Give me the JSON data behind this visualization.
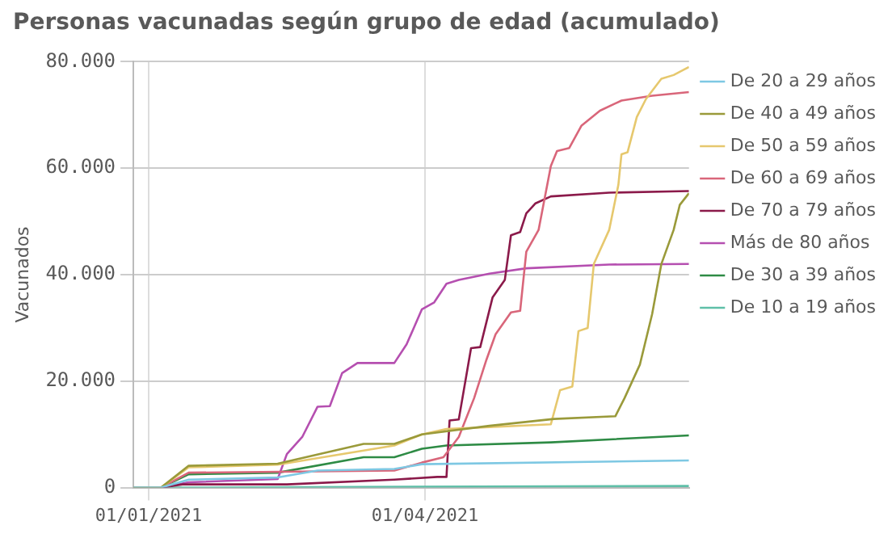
{
  "chart_data": {
    "type": "line",
    "title": "Personas vacunadas según grupo de edad (acumulado)",
    "ylabel": "Vacunados",
    "xlim": [
      "2020-12-27",
      "2021-06-26"
    ],
    "xticks": [
      {
        "value": "2021-01-01",
        "label": "01/01/2021"
      },
      {
        "value": "2021-04-01",
        "label": "01/04/2021"
      }
    ],
    "ylim": [
      0,
      80000
    ],
    "yticks": [
      0,
      {
        "value": 20000,
        "label": "20.000"
      },
      {
        "value": 40000,
        "label": "40.000"
      },
      {
        "value": 60000,
        "label": "60.000"
      },
      {
        "value": 80000,
        "label": "80.000"
      }
    ],
    "grid": true,
    "legend": "right",
    "series": [
      {
        "name": "De 20 a 29 años",
        "color": "#7ec8e3",
        "x": [
          "2020-12-27",
          "2021-01-05",
          "2021-01-14",
          "2021-02-12",
          "2021-02-25",
          "2021-03-22",
          "2021-03-31",
          "2021-06-26"
        ],
        "values": [
          0,
          0,
          1500,
          1900,
          3200,
          3500,
          4400,
          5100
        ]
      },
      {
        "name": "De 40 a 49 años",
        "color": "#9a9a3a",
        "x": [
          "2020-12-27",
          "2021-01-05",
          "2021-01-14",
          "2021-02-12",
          "2021-03-12",
          "2021-03-22",
          "2021-03-31",
          "2021-04-22",
          "2021-05-13",
          "2021-06-02",
          "2021-06-05",
          "2021-06-10",
          "2021-06-14",
          "2021-06-17",
          "2021-06-21",
          "2021-06-23",
          "2021-06-26"
        ],
        "values": [
          0,
          0,
          4100,
          4500,
          8200,
          8200,
          10000,
          11600,
          12900,
          13400,
          16800,
          23100,
          32600,
          42000,
          48400,
          53100,
          55300
        ]
      },
      {
        "name": "De 50 a 59 años",
        "color": "#e6c86e",
        "x": [
          "2020-12-27",
          "2021-01-05",
          "2021-01-14",
          "2021-02-12",
          "2021-03-22",
          "2021-03-31",
          "2021-04-08",
          "2021-05-12",
          "2021-05-15",
          "2021-05-19",
          "2021-05-21",
          "2021-05-24",
          "2021-05-26",
          "2021-05-31",
          "2021-06-03",
          "2021-06-04",
          "2021-06-06",
          "2021-06-09",
          "2021-06-12",
          "2021-06-17",
          "2021-06-21",
          "2021-06-24",
          "2021-06-26"
        ],
        "values": [
          0,
          0,
          3800,
          4300,
          7900,
          10000,
          11000,
          11900,
          18300,
          19000,
          29400,
          30000,
          42000,
          48400,
          56900,
          62600,
          63000,
          69600,
          73000,
          76800,
          77500,
          78400,
          79000
        ]
      },
      {
        "name": "De 60 a 69 años",
        "color": "#d9667a",
        "x": [
          "2020-12-27",
          "2021-01-05",
          "2021-01-14",
          "2021-03-22",
          "2021-03-31",
          "2021-04-07",
          "2021-04-12",
          "2021-04-17",
          "2021-04-21",
          "2021-04-24",
          "2021-04-29",
          "2021-05-02",
          "2021-05-04",
          "2021-05-08",
          "2021-05-12",
          "2021-05-14",
          "2021-05-18",
          "2021-05-22",
          "2021-05-28",
          "2021-06-04",
          "2021-06-14",
          "2021-06-26"
        ],
        "values": [
          0,
          0,
          2800,
          3200,
          4700,
          5700,
          9500,
          16800,
          24000,
          28800,
          32900,
          33200,
          44300,
          48400,
          60400,
          63200,
          63800,
          68000,
          70800,
          72700,
          73600,
          74300
        ]
      },
      {
        "name": "De 70 a 79 años",
        "color": "#8b1a4a",
        "x": [
          "2020-12-27",
          "2021-01-05",
          "2021-01-12",
          "2021-02-15",
          "2021-03-22",
          "2021-04-05",
          "2021-04-08",
          "2021-04-09",
          "2021-04-12",
          "2021-04-16",
          "2021-04-19",
          "2021-04-23",
          "2021-04-27",
          "2021-04-29",
          "2021-05-02",
          "2021-05-04",
          "2021-05-07",
          "2021-05-12",
          "2021-05-31",
          "2021-06-26"
        ],
        "values": [
          0,
          0,
          600,
          600,
          1500,
          2000,
          2000,
          12600,
          12800,
          26200,
          26400,
          35700,
          39000,
          47400,
          48000,
          51500,
          53400,
          54700,
          55400,
          55700
        ]
      },
      {
        "name": "Más de 80 años",
        "color": "#b54fb0",
        "x": [
          "2020-12-27",
          "2021-01-05",
          "2021-01-14",
          "2021-02-12",
          "2021-02-15",
          "2021-02-20",
          "2021-02-25",
          "2021-03-01",
          "2021-03-05",
          "2021-03-10",
          "2021-03-22",
          "2021-03-26",
          "2021-03-31",
          "2021-04-04",
          "2021-04-08",
          "2021-04-12",
          "2021-04-22",
          "2021-05-04",
          "2021-05-31",
          "2021-06-26"
        ],
        "values": [
          0,
          0,
          1000,
          1600,
          6300,
          9500,
          15200,
          15300,
          21500,
          23400,
          23400,
          26900,
          33500,
          34800,
          38300,
          39000,
          40200,
          41200,
          41900,
          42000
        ]
      },
      {
        "name": "De 30 a 39 años",
        "color": "#2e8b45",
        "x": [
          "2020-12-27",
          "2021-01-05",
          "2021-01-14",
          "2021-02-12",
          "2021-03-12",
          "2021-03-22",
          "2021-03-31",
          "2021-04-08",
          "2021-05-12",
          "2021-06-26"
        ],
        "values": [
          0,
          0,
          2500,
          2800,
          5700,
          5700,
          7300,
          7900,
          8500,
          9800
        ]
      },
      {
        "name": "De 10 a 19 años",
        "color": "#5fbfa8",
        "x": [
          "2020-12-27",
          "2021-01-05",
          "2021-06-26"
        ],
        "values": [
          0,
          0,
          300
        ]
      }
    ]
  }
}
